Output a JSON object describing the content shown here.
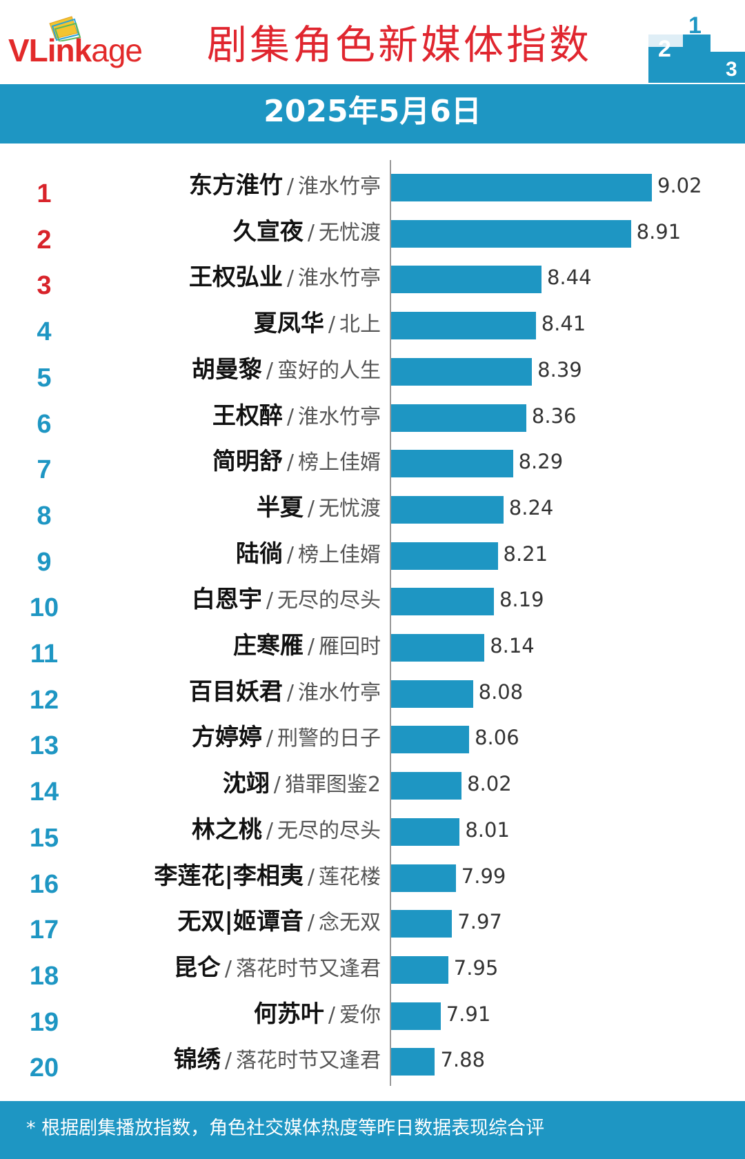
{
  "header": {
    "logo_text_a": "VLink",
    "logo_text_b": "age",
    "title": "剧集角色新媒体指数",
    "podium_labels": [
      "2",
      "1",
      "3"
    ]
  },
  "date": "2025年5月6日",
  "colors": {
    "accent": "#1e96c3",
    "title_red": "#e0262f",
    "rank_red": "#d8232a",
    "rank_blue": "#1e96c3"
  },
  "separator": "/",
  "chart_data": {
    "type": "bar",
    "orientation": "horizontal",
    "title": "剧集角色新媒体指数",
    "subtitle": "2025年5月6日",
    "xlim": [
      7.65,
      9.02
    ],
    "entries": [
      {
        "rank": "1",
        "name": "东方淮竹",
        "show": "淮水竹亭",
        "value": 9.02,
        "value_label": "9.02"
      },
      {
        "rank": "2",
        "name": "久宣夜",
        "show": "无忧渡",
        "value": 8.91,
        "value_label": "8.91"
      },
      {
        "rank": "3",
        "name": "王权弘业",
        "show": "淮水竹亭",
        "value": 8.44,
        "value_label": "8.44"
      },
      {
        "rank": "4",
        "name": "夏凤华",
        "show": "北上",
        "value": 8.41,
        "value_label": "8.41"
      },
      {
        "rank": "5",
        "name": "胡曼黎",
        "show": "蛮好的人生",
        "value": 8.39,
        "value_label": "8.39"
      },
      {
        "rank": "6",
        "name": "王权醉",
        "show": "淮水竹亭",
        "value": 8.36,
        "value_label": "8.36"
      },
      {
        "rank": "7",
        "name": "简明舒",
        "show": "榜上佳婿",
        "value": 8.29,
        "value_label": "8.29"
      },
      {
        "rank": "8",
        "name": "半夏",
        "show": "无忧渡",
        "value": 8.24,
        "value_label": "8.24"
      },
      {
        "rank": "9",
        "name": "陆徜",
        "show": "榜上佳婿",
        "value": 8.21,
        "value_label": "8.21"
      },
      {
        "rank": "10",
        "name": "白恩宇",
        "show": "无尽的尽头",
        "value": 8.19,
        "value_label": "8.19"
      },
      {
        "rank": "11",
        "name": "庄寒雁",
        "show": "雁回时",
        "value": 8.14,
        "value_label": "8.14"
      },
      {
        "rank": "12",
        "name": "百目妖君",
        "show": "淮水竹亭",
        "value": 8.08,
        "value_label": "8.08"
      },
      {
        "rank": "13",
        "name": "方婷婷",
        "show": "刑警的日子",
        "value": 8.06,
        "value_label": "8.06"
      },
      {
        "rank": "14",
        "name": "沈翊",
        "show": "猎罪图鉴2",
        "value": 8.02,
        "value_label": "8.02"
      },
      {
        "rank": "15",
        "name": "林之桃",
        "show": "无尽的尽头",
        "value": 8.01,
        "value_label": "8.01"
      },
      {
        "rank": "16",
        "name": "李莲花|李相夷",
        "show": "莲花楼",
        "value": 7.99,
        "value_label": "7.99"
      },
      {
        "rank": "17",
        "name": "无双|姬谭音",
        "show": "念无双",
        "value": 7.97,
        "value_label": "7.97"
      },
      {
        "rank": "18",
        "name": "昆仑",
        "show": "落花时节又逢君",
        "value": 7.95,
        "value_label": "7.95"
      },
      {
        "rank": "19",
        "name": "何苏叶",
        "show": "爱你",
        "value": 7.91,
        "value_label": "7.91"
      },
      {
        "rank": "20",
        "name": "锦绣",
        "show": "落花时节又逢君",
        "value": 7.88,
        "value_label": "7.88"
      }
    ]
  },
  "footer": {
    "note": "* 根据剧集播放指数，角色社交媒体热度等昨日数据表现综合评"
  }
}
